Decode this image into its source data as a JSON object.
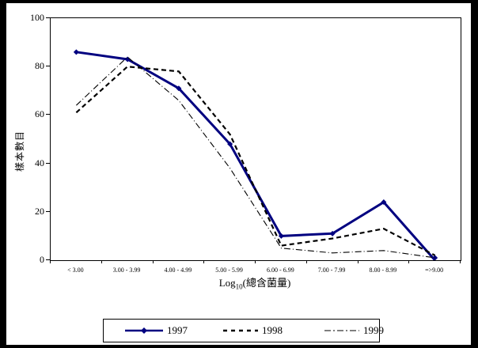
{
  "chart_data": {
    "type": "line",
    "title": "",
    "xlabel": "Log10(總含菌量)",
    "xlabel_parts": {
      "prefix": "Log",
      "sub": "10",
      "suffix": "(總含菌量)"
    },
    "ylabel": "樣本數目",
    "ylim": [
      0,
      100
    ],
    "y_ticks": [
      0,
      20,
      40,
      60,
      80,
      100
    ],
    "grid": false,
    "legend_position": "bottom",
    "categories": [
      "< 3.00",
      "3.00 - 3.99",
      "4.00 - 4.99",
      "5.00 - 5.99",
      "6.00 - 6.99",
      "7.00 - 7.99",
      "8.00 - 8.99",
      "=>9.00"
    ],
    "series": [
      {
        "name": "1997",
        "values": [
          86,
          83,
          71,
          48,
          10,
          11,
          24,
          0
        ],
        "color": "#000080",
        "style": "solid",
        "marker": "diamond"
      },
      {
        "name": "1998",
        "values": [
          61,
          80,
          78,
          52,
          6,
          9,
          13,
          2
        ],
        "color": "#000000",
        "style": "dashed",
        "marker": "none"
      },
      {
        "name": "1999",
        "values": [
          64,
          84,
          66,
          38,
          5,
          3,
          4,
          1
        ],
        "color": "#000000",
        "style": "dashdot",
        "marker": "none"
      }
    ]
  }
}
